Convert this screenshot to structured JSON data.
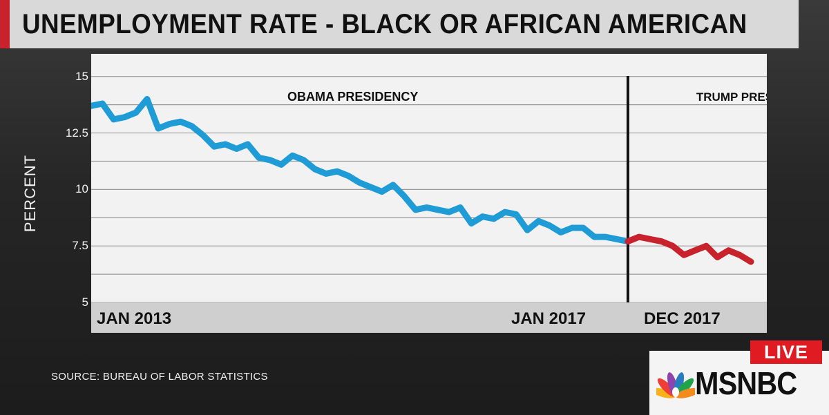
{
  "header": {
    "title": "UNEMPLOYMENT RATE - BLACK OR AFRICAN AMERICAN"
  },
  "footer": {
    "source": "SOURCE: BUREAU OF LABOR STATISTICS"
  },
  "branding": {
    "network": "MSNBC",
    "live_label": "LIVE",
    "logo_icon": "peacock-icon"
  },
  "colors": {
    "obama_series": "#1f9bd6",
    "trump_series": "#c8232c",
    "live_red": "#e11b22",
    "title_bar": "#d9d9d9"
  },
  "chart_data": {
    "type": "line",
    "title": "UNEMPLOYMENT RATE - BLACK OR AFRICAN AMERICAN",
    "ylabel": "PERCENT",
    "xlabel": "",
    "ylim": [
      5,
      16
    ],
    "yticks": [
      5,
      7.5,
      10,
      12.5,
      15
    ],
    "ytick_labels": [
      "5",
      "7.5",
      "10",
      "12.5",
      "15"
    ],
    "x_tick_labels": [
      {
        "label": "JAN 2013",
        "x": "2013-01"
      },
      {
        "label": "JAN 2017",
        "x": "2017-01"
      },
      {
        "label": "DEC 2017",
        "x": "2017-12"
      }
    ],
    "grid": true,
    "annotations": [
      {
        "text": "OBAMA PRESIDENCY",
        "x": "2014-12",
        "y": 14.0
      },
      {
        "text": "TRUMP PRESIDENCY",
        "x": "2017-06",
        "y": 14.0
      }
    ],
    "divider": {
      "x": "2017-01"
    },
    "series": [
      {
        "color": "#1f9bd6",
        "x": [
          "2013-01",
          "2013-02",
          "2013-03",
          "2013-04",
          "2013-05",
          "2013-06",
          "2013-07",
          "2013-08",
          "2013-09",
          "2013-10",
          "2013-11",
          "2013-12",
          "2014-01",
          "2014-02",
          "2014-03",
          "2014-04",
          "2014-05",
          "2014-06",
          "2014-07",
          "2014-08",
          "2014-09",
          "2014-10",
          "2014-11",
          "2014-12",
          "2015-01",
          "2015-02",
          "2015-03",
          "2015-04",
          "2015-05",
          "2015-06",
          "2015-07",
          "2015-08",
          "2015-09",
          "2015-10",
          "2015-11",
          "2015-12",
          "2016-01",
          "2016-02",
          "2016-03",
          "2016-04",
          "2016-05",
          "2016-06",
          "2016-07",
          "2016-08",
          "2016-09",
          "2016-10",
          "2016-11",
          "2016-12",
          "2017-01"
        ],
        "values": [
          13.7,
          13.8,
          13.1,
          13.2,
          13.4,
          14.0,
          12.7,
          12.9,
          13.0,
          12.8,
          12.4,
          11.9,
          12.0,
          11.8,
          12.0,
          11.4,
          11.3,
          11.1,
          11.5,
          11.3,
          10.9,
          10.7,
          10.8,
          10.6,
          10.3,
          10.1,
          9.9,
          10.2,
          9.7,
          9.1,
          9.2,
          9.1,
          9.0,
          9.2,
          8.5,
          8.8,
          8.7,
          9.0,
          8.9,
          8.2,
          8.6,
          8.4,
          8.1,
          8.3,
          8.3,
          7.9,
          7.9,
          7.8,
          7.7
        ]
      },
      {
        "color": "#c8232c",
        "x": [
          "2017-01",
          "2017-02",
          "2017-03",
          "2017-04",
          "2017-05",
          "2017-06",
          "2017-07",
          "2017-08",
          "2017-09",
          "2017-10",
          "2017-11",
          "2017-12"
        ],
        "values": [
          7.7,
          7.9,
          7.8,
          7.7,
          7.5,
          7.1,
          7.3,
          7.5,
          7.0,
          7.3,
          7.1,
          6.8
        ]
      }
    ]
  }
}
